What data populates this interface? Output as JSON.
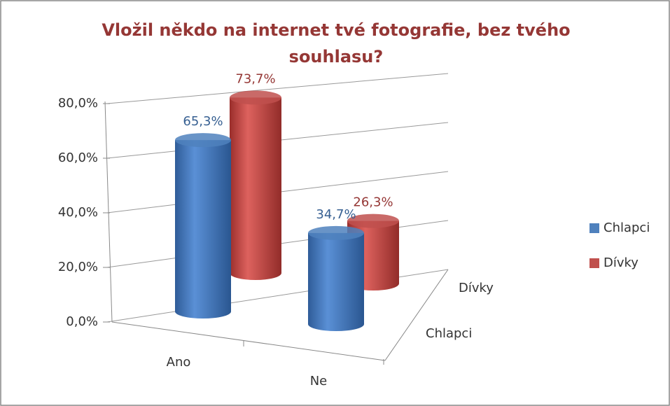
{
  "chart_data": {
    "type": "bar3d",
    "title": "Vložil někdo na internet tvé fotografie, bez tvého souhlasu?",
    "categories": [
      "Ano",
      "Ne"
    ],
    "series": [
      {
        "name": "Chlapci",
        "color": "#4f81bd",
        "values": [
          65.3,
          34.7
        ],
        "value_labels": [
          "65,3%",
          "34,7%"
        ]
      },
      {
        "name": "Dívky",
        "color": "#c0504d",
        "values": [
          73.7,
          26.3
        ],
        "value_labels": [
          "73,7%",
          "26,3%"
        ]
      }
    ],
    "ylim": [
      0,
      80
    ],
    "yticks": [
      {
        "value": 0,
        "label": "0,0%"
      },
      {
        "value": 20,
        "label": "20,0%"
      },
      {
        "value": 40,
        "label": "40,0%"
      },
      {
        "value": 60,
        "label": "60,0%"
      },
      {
        "value": 80,
        "label": "80,0%"
      }
    ],
    "grid": true,
    "legend": "right"
  }
}
